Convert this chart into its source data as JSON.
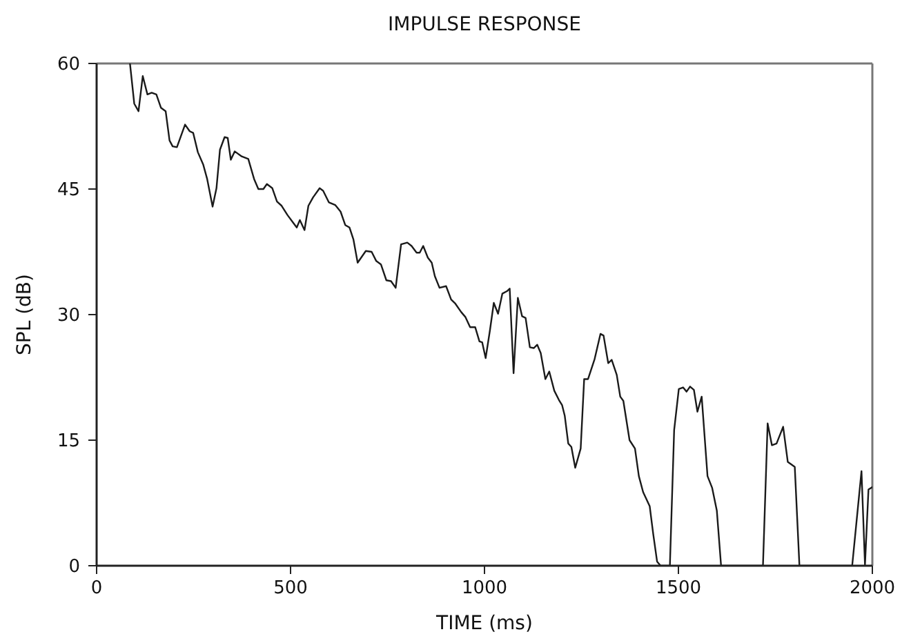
{
  "chart_data": {
    "type": "line",
    "title": "IMPULSE RESPONSE",
    "xlabel": "TIME (ms)",
    "ylabel": "SPL (dB)",
    "xlim": [
      0,
      2000
    ],
    "ylim": [
      0,
      60
    ],
    "xticks": [
      0,
      500,
      1000,
      1500,
      2000
    ],
    "yticks": [
      0,
      15,
      30,
      45,
      60
    ],
    "grid": false,
    "marker": "none",
    "line_style": "solid",
    "series": [
      {
        "color": "#1a1a1a",
        "x": [
          86,
          97,
          108,
          119,
          131,
          142,
          154,
          166,
          178,
          188,
          196,
          207,
          228,
          240,
          249,
          261,
          275,
          285,
          299,
          309,
          318,
          330,
          338,
          346,
          356,
          374,
          391,
          406,
          417,
          430,
          439,
          453,
          465,
          477,
          492,
          508,
          516,
          524,
          536,
          546,
          558,
          575,
          584,
          599,
          615,
          629,
          641,
          652,
          662,
          673,
          694,
          709,
          721,
          733,
          747,
          759,
          771,
          785,
          801,
          812,
          825,
          833,
          842,
          854,
          864,
          872,
          884,
          901,
          914,
          925,
          940,
          951,
          963,
          976,
          987,
          994,
          1003,
          1014,
          1024,
          1035,
          1046,
          1058,
          1065,
          1075,
          1086,
          1097,
          1106,
          1117,
          1127,
          1136,
          1145,
          1157,
          1167,
          1180,
          1192,
          1200,
          1207,
          1216,
          1224,
          1234,
          1248,
          1257,
          1267,
          1284,
          1299,
          1307,
          1319,
          1328,
          1341,
          1350,
          1358,
          1374,
          1388,
          1398,
          1409,
          1426,
          1435,
          1445,
          1454,
          1478,
          1489,
          1501,
          1512,
          1521,
          1530,
          1540,
          1549,
          1560,
          1575,
          1587,
          1599,
          1610,
          1718,
          1730,
          1741,
          1753,
          1770,
          1782,
          1800,
          1812,
          1948,
          1972,
          1981,
          1990,
          2000
        ],
        "values": [
          60,
          55.2,
          54.3,
          58.5,
          56.3,
          56.5,
          56.3,
          54.7,
          54.3,
          50.8,
          50.1,
          50,
          52.7,
          51.9,
          51.7,
          49.4,
          47.9,
          46.2,
          42.9,
          45.1,
          49.7,
          51.2,
          51.1,
          48.5,
          49.5,
          48.9,
          48.6,
          46.2,
          45,
          45,
          45.6,
          45.1,
          43.5,
          43,
          41.9,
          40.9,
          40.4,
          41.3,
          40.1,
          43,
          44,
          45.1,
          44.8,
          43.4,
          43.1,
          42.3,
          40.7,
          40.4,
          39,
          36.2,
          37.6,
          37.5,
          36.4,
          36,
          34.1,
          34,
          33.2,
          38.4,
          38.6,
          38.2,
          37.4,
          37.4,
          38.2,
          36.8,
          36.2,
          34.6,
          33.2,
          33.4,
          31.8,
          31.3,
          30.3,
          29.7,
          28.5,
          28.5,
          26.8,
          26.7,
          24.8,
          28.1,
          31.4,
          30.1,
          32.5,
          32.8,
          33.1,
          23,
          32,
          29.8,
          29.6,
          26.1,
          26,
          26.4,
          25.4,
          22.3,
          23.2,
          20.9,
          19.8,
          19.2,
          17.9,
          14.6,
          14.2,
          11.7,
          14,
          22.3,
          22.3,
          24.7,
          27.7,
          27.5,
          24.2,
          24.6,
          22.8,
          20.2,
          19.7,
          15,
          14,
          10.7,
          8.8,
          7.1,
          3.8,
          0.5,
          0,
          0,
          16.2,
          21.1,
          21.3,
          20.8,
          21.4,
          21,
          18.4,
          20.2,
          10.7,
          9.3,
          6.6,
          0,
          0,
          17,
          14.4,
          14.6,
          16.6,
          12.4,
          11.8,
          0,
          0,
          11.3,
          0.1,
          9.1,
          9.4
        ]
      }
    ]
  }
}
